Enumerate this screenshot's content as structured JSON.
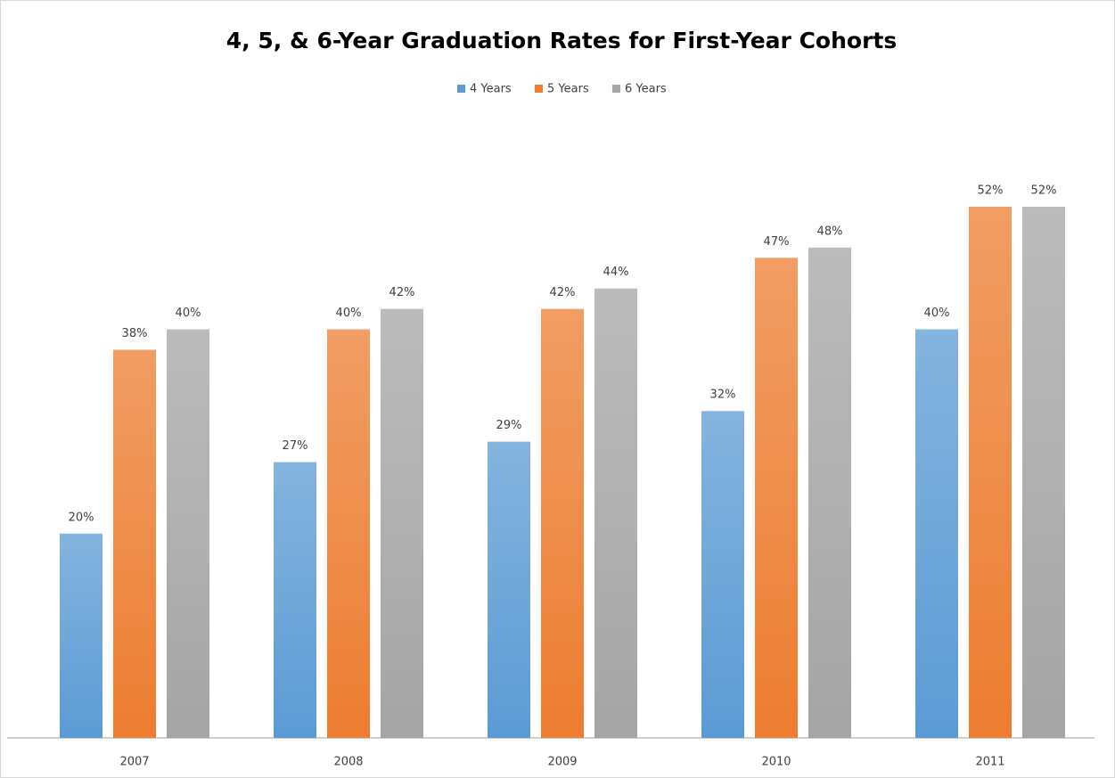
{
  "chart_data": {
    "type": "bar",
    "title": "4, 5, & 6-Year Graduation Rates for First-Year Cohorts",
    "categories": [
      "2007",
      "2008",
      "2009",
      "2010",
      "2011"
    ],
    "series": [
      {
        "name": "4 Years",
        "color": "#5b9bd5",
        "values": [
          20,
          27,
          29,
          32,
          40
        ],
        "value_labels": [
          "20%",
          "27%",
          "29%",
          "32%",
          "40%"
        ]
      },
      {
        "name": "5 Years",
        "color": "#ed7d31",
        "values": [
          38,
          40,
          42,
          47,
          52
        ],
        "value_labels": [
          "38%",
          "40%",
          "42%",
          "47%",
          "52%"
        ]
      },
      {
        "name": "6 Years",
        "color": "#a5a5a5",
        "values": [
          40,
          42,
          44,
          48,
          52
        ],
        "value_labels": [
          "40%",
          "42%",
          "44%",
          "48%",
          "52%"
        ]
      }
    ],
    "legend": "top"
  }
}
